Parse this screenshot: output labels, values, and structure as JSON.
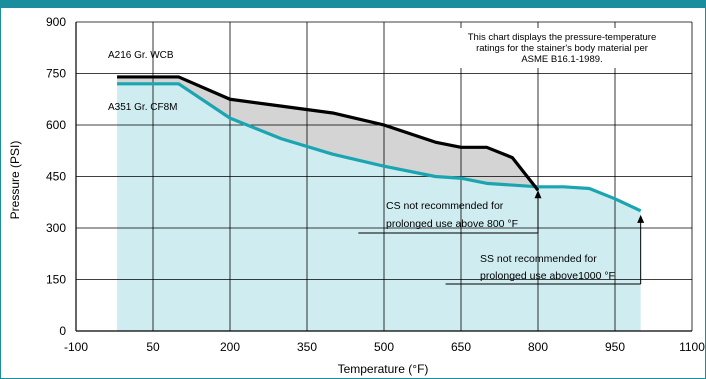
{
  "chart_data": {
    "type": "line",
    "xlabel": "Temperature (°F)",
    "ylabel": "Pressure (PSI)",
    "xlim": [
      -100,
      1100
    ],
    "ylim": [
      0,
      900
    ],
    "x_ticks": [
      "-100",
      "50",
      "200",
      "350",
      "500",
      "650",
      "800",
      "950",
      "1100"
    ],
    "y_ticks": [
      "0",
      "150",
      "300",
      "450",
      "600",
      "750",
      "900"
    ],
    "grid": true,
    "series": [
      {
        "name": "A216 Gr. WCB",
        "color": "#000000",
        "x": [
          -20,
          100,
          200,
          300,
          400,
          500,
          600,
          650,
          700,
          750,
          800
        ],
        "y": [
          740,
          740,
          675,
          655,
          635,
          600,
          550,
          535,
          535,
          505,
          410
        ]
      },
      {
        "name": "A351 Gr. CF8M",
        "color": "#1aa5b0",
        "x": [
          -20,
          100,
          200,
          300,
          400,
          500,
          600,
          650,
          700,
          750,
          800,
          850,
          900,
          950,
          1000
        ],
        "y": [
          720,
          720,
          620,
          560,
          515,
          480,
          450,
          445,
          430,
          425,
          420,
          420,
          415,
          385,
          350
        ]
      }
    ],
    "annotations": [
      {
        "text": "This chart displays the pressure-temperature"
      },
      {
        "text": "ratings  for the stainer's body material per"
      },
      {
        "text": "ASME B16.1-1989."
      },
      {
        "text": "CS not recommended for"
      },
      {
        "text": "prolonged use above 800 °F"
      },
      {
        "text": "SS not recommended for"
      },
      {
        "text": "prolonged use above1000 °F"
      }
    ]
  }
}
